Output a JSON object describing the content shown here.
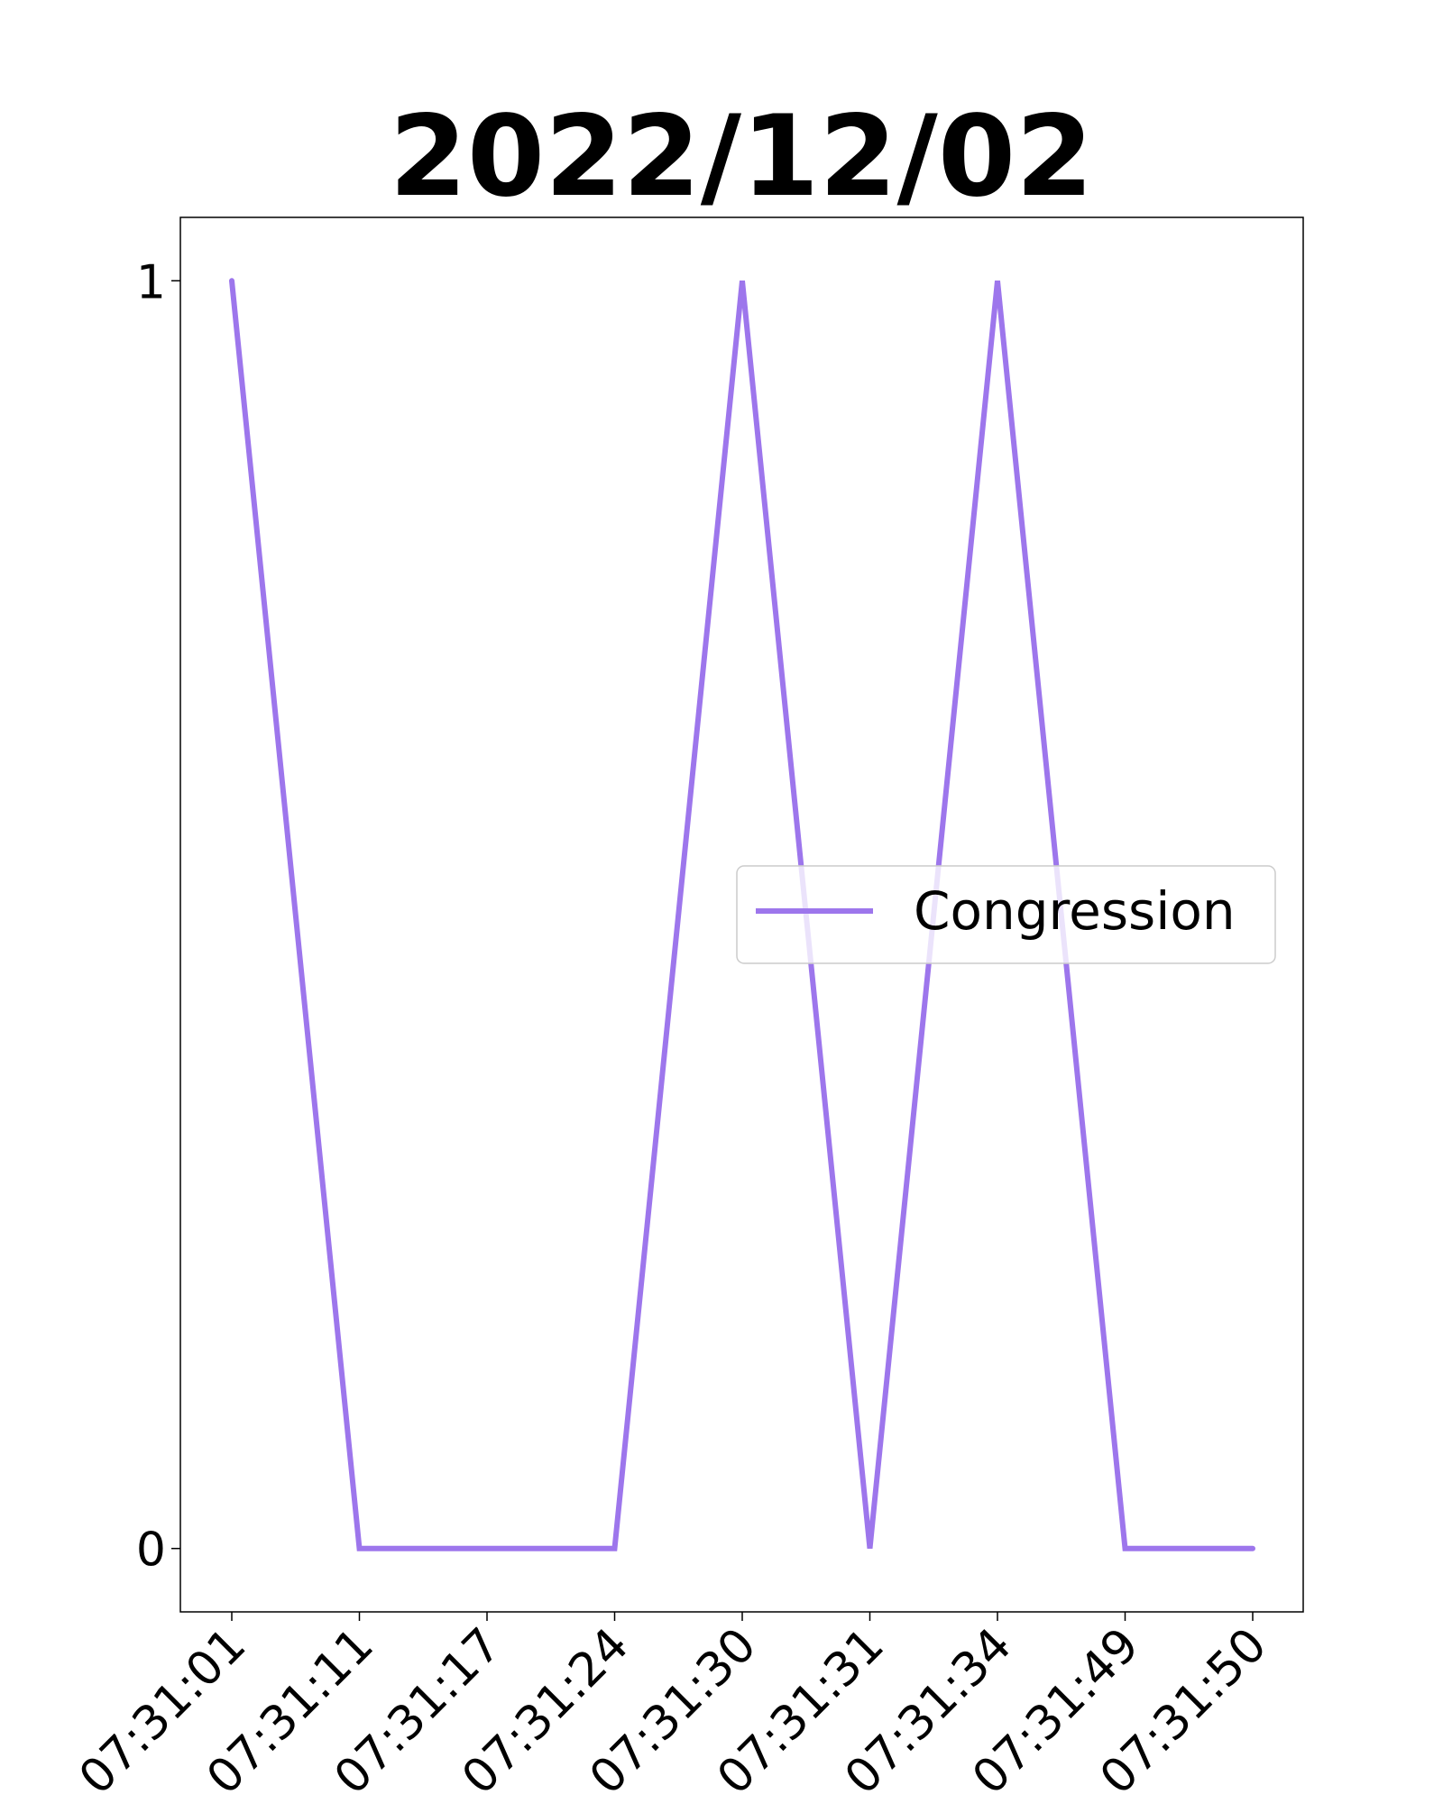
{
  "chart_data": {
    "type": "line",
    "title": "2022/12/02",
    "xlabel": "",
    "ylabel": "",
    "categories": [
      "07:31:01",
      "07:31:11",
      "07:31:17",
      "07:31:24",
      "07:31:30",
      "07:31:31",
      "07:31:34",
      "07:31:49",
      "07:31:50"
    ],
    "series": [
      {
        "name": "Congression",
        "color": "#9d76ec",
        "values": [
          1,
          0,
          0,
          0,
          1,
          0,
          1,
          0,
          0
        ]
      }
    ],
    "yticks": [
      0,
      1
    ],
    "ylim": [
      -0.05,
      1.05
    ],
    "xtick_rotation": -45,
    "grid": false,
    "legend_position": "center-right"
  }
}
